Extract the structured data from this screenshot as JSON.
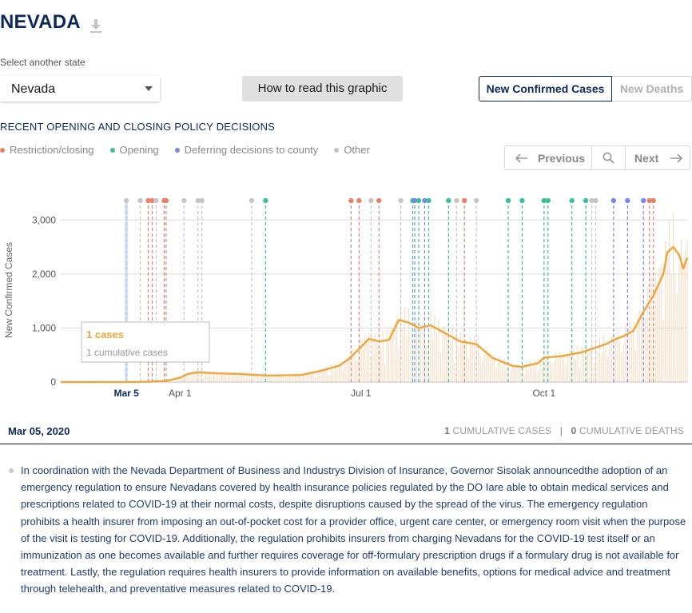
{
  "header": {
    "title": "NEVADA",
    "download_icon": "download-icon"
  },
  "state_select": {
    "label": "Select another state",
    "value": "Nevada"
  },
  "how_button": "How to read this graphic",
  "metric_toggle": {
    "active": "New Confirmed Cases",
    "inactive": "New Deaths"
  },
  "policy": {
    "section_title": "RECENT OPENING AND CLOSING POLICY DECISIONS",
    "legend": [
      {
        "label": "Restriction/closing",
        "color": "#e8826b"
      },
      {
        "label": "Opening",
        "color": "#3bbf9d"
      },
      {
        "label": "Deferring decisions to county",
        "color": "#7b86e8"
      },
      {
        "label": "Other",
        "color": "#c6c6c6"
      }
    ]
  },
  "pager": {
    "previous": "Previous",
    "next": "Next"
  },
  "chart_data": {
    "type": "line",
    "ylabel": "New Confirmed Cases",
    "ylim": [
      0,
      3300
    ],
    "yticks": [
      0,
      1000,
      2000,
      3000
    ],
    "ytick_labels": [
      "0",
      "1,000",
      "2,000",
      "3,000"
    ],
    "x_start": "2020-02-01",
    "x_end": "2020-12-12",
    "xticks": [
      {
        "date": "2020-03-05",
        "label": "Mar 5",
        "selected": true
      },
      {
        "date": "2020-04-01",
        "label": "Apr 1"
      },
      {
        "date": "2020-07-01",
        "label": "Jul 1"
      },
      {
        "date": "2020-10-01",
        "label": "Oct 1"
      }
    ],
    "selected_date": "2020-03-05",
    "series": [
      {
        "name": "7-day average",
        "color": "#f0a43a",
        "x": [
          "2020-02-01",
          "2020-03-05",
          "2020-03-16",
          "2020-03-25",
          "2020-04-01",
          "2020-04-05",
          "2020-04-10",
          "2020-04-20",
          "2020-05-01",
          "2020-05-15",
          "2020-06-01",
          "2020-06-10",
          "2020-06-20",
          "2020-06-25",
          "2020-07-01",
          "2020-07-05",
          "2020-07-10",
          "2020-07-15",
          "2020-07-20",
          "2020-07-25",
          "2020-07-30",
          "2020-08-05",
          "2020-08-10",
          "2020-08-20",
          "2020-08-28",
          "2020-09-05",
          "2020-09-15",
          "2020-09-20",
          "2020-09-28",
          "2020-10-01",
          "2020-10-10",
          "2020-10-20",
          "2020-10-28",
          "2020-11-01",
          "2020-11-05",
          "2020-11-10",
          "2020-11-15",
          "2020-11-20",
          "2020-11-25",
          "2020-11-30",
          "2020-12-02",
          "2020-12-05",
          "2020-12-08",
          "2020-12-10",
          "2020-12-12"
        ],
        "y": [
          0,
          1,
          5,
          20,
          80,
          150,
          180,
          160,
          150,
          120,
          130,
          200,
          300,
          430,
          650,
          800,
          750,
          780,
          1150,
          1100,
          1000,
          1050,
          950,
          750,
          700,
          450,
          300,
          280,
          350,
          450,
          480,
          550,
          650,
          700,
          780,
          850,
          950,
          1300,
          1600,
          2000,
          2400,
          2500,
          2350,
          2100,
          2300
        ]
      }
    ],
    "daily_bars_color": "#f6d4b3",
    "events": [
      {
        "date": "2020-03-05",
        "type": "other"
      },
      {
        "date": "2020-03-12",
        "type": "other"
      },
      {
        "date": "2020-03-16",
        "type": "restriction"
      },
      {
        "date": "2020-03-18",
        "type": "restriction"
      },
      {
        "date": "2020-03-20",
        "type": "other"
      },
      {
        "date": "2020-03-24",
        "type": "restriction"
      },
      {
        "date": "2020-03-25",
        "type": "restriction"
      },
      {
        "date": "2020-04-03",
        "type": "other"
      },
      {
        "date": "2020-04-10",
        "type": "other"
      },
      {
        "date": "2020-04-12",
        "type": "other"
      },
      {
        "date": "2020-05-07",
        "type": "other"
      },
      {
        "date": "2020-05-14",
        "type": "opening"
      },
      {
        "date": "2020-06-26",
        "type": "restriction"
      },
      {
        "date": "2020-06-30",
        "type": "restriction"
      },
      {
        "date": "2020-07-06",
        "type": "other"
      },
      {
        "date": "2020-07-10",
        "type": "restriction"
      },
      {
        "date": "2020-07-21",
        "type": "other"
      },
      {
        "date": "2020-07-27",
        "type": "opening"
      },
      {
        "date": "2020-07-28",
        "type": "county"
      },
      {
        "date": "2020-07-30",
        "type": "opening"
      },
      {
        "date": "2020-08-02",
        "type": "county"
      },
      {
        "date": "2020-08-04",
        "type": "opening"
      },
      {
        "date": "2020-08-14",
        "type": "opening"
      },
      {
        "date": "2020-08-18",
        "type": "other"
      },
      {
        "date": "2020-08-22",
        "type": "restriction"
      },
      {
        "date": "2020-08-28",
        "type": "other"
      },
      {
        "date": "2020-09-13",
        "type": "opening"
      },
      {
        "date": "2020-09-20",
        "type": "opening"
      },
      {
        "date": "2020-10-01",
        "type": "opening"
      },
      {
        "date": "2020-10-03",
        "type": "opening"
      },
      {
        "date": "2020-10-15",
        "type": "opening"
      },
      {
        "date": "2020-10-22",
        "type": "opening"
      },
      {
        "date": "2020-10-25",
        "type": "other"
      },
      {
        "date": "2020-10-27",
        "type": "other"
      },
      {
        "date": "2020-11-05",
        "type": "county"
      },
      {
        "date": "2020-11-12",
        "type": "county"
      },
      {
        "date": "2020-11-20",
        "type": "county"
      },
      {
        "date": "2020-11-23",
        "type": "restriction"
      },
      {
        "date": "2020-11-25",
        "type": "restriction"
      }
    ],
    "event_colors": {
      "restriction": "#e8826b",
      "opening": "#3bbf9d",
      "county": "#7b86e8",
      "other": "#c6c6c6"
    },
    "tooltip": {
      "value": "1 cases",
      "sub": "1 cumulative cases"
    }
  },
  "info_bar": {
    "date": "Mar 05, 2020",
    "cumulative_cases_value": "1",
    "cumulative_cases_label": "CUMULATIVE CASES",
    "separator": "|",
    "cumulative_deaths_value": "0",
    "cumulative_deaths_label": "CUMULATIVE DEATHS"
  },
  "description": "In coordination with the Nevada Department of Business and Industrys Division of Insurance, Governor Sisolak announcedthe adoption of an emergency regulation to ensure Nevadans covered by health insurance policies regulated by the DO Iare able to obtain medical services and prescriptions related to COVID-19 at their normal costs, despite disruptions caused by the spread of the virus. The emergency regulation prohibits a health insurer from imposing an out-of-pocket cost for a provider office, urgent care center, or emergency room visit when the purpose of the visit is testing for COVID-19. Additionally, the regulation prohibits insurers from charging Nevadans for the COVID-19 test itself or an immunization as one becomes available and further requires coverage for off-formulary prescription drugs if a formulary drug is not available for treatment. Lastly, the regulation requires health insurers to provide information on available benefits, options for medical advice and treatment through telehealth, and preventative measures related to COVID-19."
}
